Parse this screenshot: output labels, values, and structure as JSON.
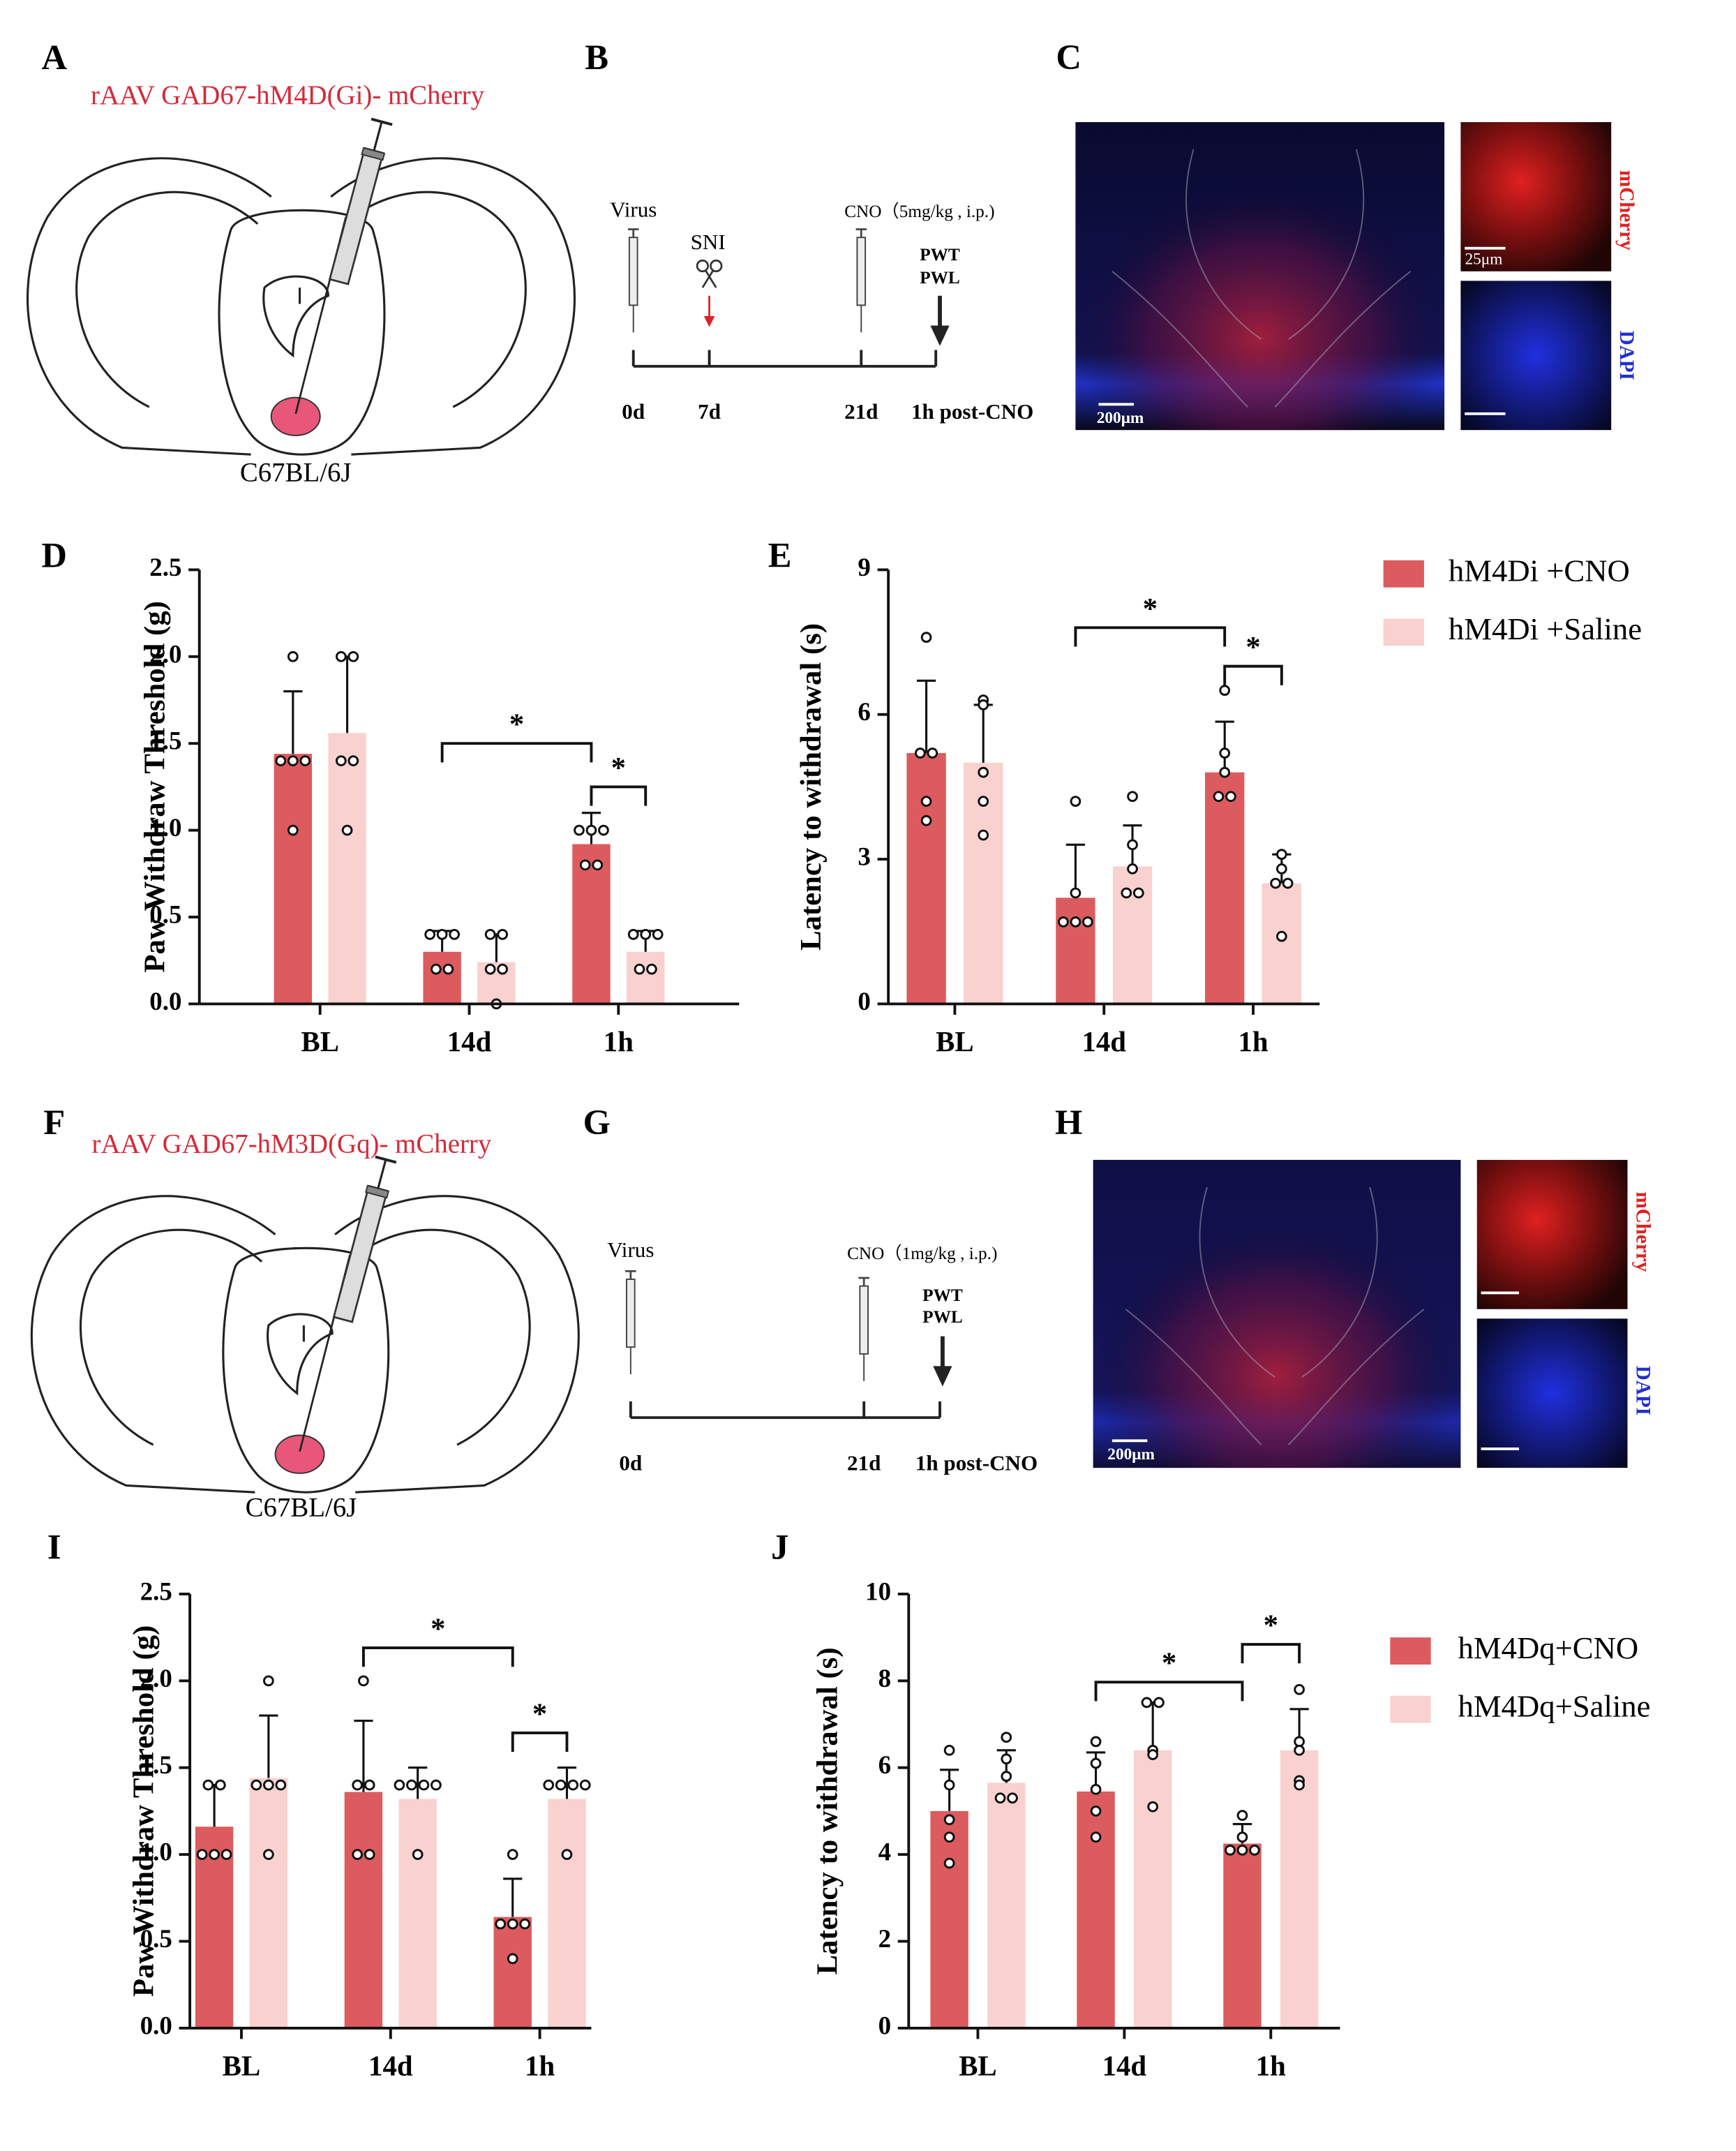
{
  "panels": {
    "A": {
      "letter": "A",
      "construct": "rAAV GAD67-hM4D(Gi)- mCherry",
      "strain": "C67BL/6J"
    },
    "B": {
      "letter": "B",
      "virus": "Virus",
      "sni": "SNI",
      "cno": "CNO（5mg/kg , i.p.)",
      "tests": [
        "PWT",
        "PWL"
      ],
      "timepoints": [
        "0d",
        "7d",
        "21d",
        "1h post-CNO"
      ]
    },
    "C": {
      "letter": "C",
      "scale_main": "200μm",
      "scale_inset": "25μm",
      "channels": [
        "mCherry",
        "DAPI"
      ]
    },
    "F": {
      "letter": "F",
      "construct": "rAAV GAD67-hM3D(Gq)- mCherry",
      "strain": "C67BL/6J"
    },
    "G": {
      "letter": "G",
      "virus": "Virus",
      "cno": "CNO（1mg/kg , i.p.)",
      "tests": [
        "PWT",
        "PWL"
      ],
      "timepoints": [
        "0d",
        "21d",
        "1h post-CNO"
      ]
    },
    "H": {
      "letter": "H",
      "scale_main": "200μm",
      "channels": [
        "mCherry",
        "DAPI"
      ]
    }
  },
  "chart_data": [
    {
      "panel": "D",
      "type": "bar",
      "ylabel": "Paw Withdraw Threshold (g)",
      "categories": [
        "BL",
        "14d",
        "1h"
      ],
      "ylim": [
        0,
        2.5
      ],
      "yticks": [
        {
          "value": 0,
          "label": "0.0"
        },
        0.5,
        {
          "value": 1,
          "label": "1.0"
        },
        1.5,
        {
          "value": 2,
          "label": "2.0"
        },
        2.5
      ],
      "series": [
        {
          "color": "#dc5b5e",
          "values": [
            1.44,
            0.3,
            0.92
          ],
          "errors": [
            0.36,
            0.12,
            0.18
          ],
          "points": [
            [
              2.0,
              1.4,
              1.4,
              1.4,
              1.0
            ],
            [
              0.4,
              0.4,
              0.4,
              0.2,
              0.2
            ],
            [
              1.0,
              1.0,
              1.0,
              0.8,
              0.8
            ]
          ]
        },
        {
          "color": "#f9d1cf",
          "values": [
            1.56,
            0.24,
            0.3
          ],
          "errors": [
            0.44,
            0.16,
            0.12
          ],
          "points": [
            [
              2.0,
              2.0,
              1.4,
              1.4,
              1.0
            ],
            [
              0.4,
              0.4,
              0.2,
              0.2,
              0.0
            ],
            [
              0.4,
              0.4,
              0.4,
              0.2,
              0.2
            ]
          ]
        }
      ],
      "brackets": [
        {
          "y": 1.5,
          "label": "*"
        },
        {
          "y": 1.25,
          "label": "*"
        }
      ]
    },
    {
      "panel": "E",
      "type": "bar",
      "ylabel": "Latency to withdrawal (s)",
      "categories": [
        "BL",
        "14d",
        "1h"
      ],
      "ylim": [
        0,
        9
      ],
      "yticks": [
        0,
        3,
        6,
        9
      ],
      "legend": "outside right",
      "series": [
        {
          "name": "hM4Di +CNO",
          "color": "#dc5b5e",
          "values": [
            5.2,
            2.2,
            4.8
          ],
          "errors": [
            1.5,
            1.1,
            1.05
          ],
          "points": [
            [
              7.6,
              5.2,
              5.2,
              4.2,
              3.8
            ],
            [
              4.2,
              2.3,
              1.7,
              1.7,
              1.7
            ],
            [
              6.5,
              5.2,
              4.8,
              4.3,
              4.3
            ]
          ]
        },
        {
          "name": "hM4Di +Saline",
          "color": "#f9d1cf",
          "values": [
            5.0,
            2.85,
            2.5
          ],
          "errors": [
            1.2,
            0.85,
            0.6
          ],
          "points": [
            [
              6.3,
              6.2,
              4.8,
              4.2,
              3.5
            ],
            [
              4.3,
              3.3,
              2.8,
              2.3,
              2.3
            ],
            [
              3.1,
              2.8,
              2.5,
              2.5,
              1.4
            ]
          ]
        }
      ],
      "brackets": [
        {
          "y": 7.8,
          "label": "*"
        },
        {
          "y": 7.0,
          "label": "*"
        }
      ]
    },
    {
      "panel": "I",
      "type": "bar",
      "ylabel": "Paw Withdraw Threshold (g)",
      "categories": [
        "BL",
        "14d",
        "1h"
      ],
      "ylim": [
        0,
        2.5
      ],
      "yticks": [
        {
          "value": 0,
          "label": "0.0"
        },
        0.5,
        {
          "value": 1,
          "label": "1.0"
        },
        1.5,
        {
          "value": 2,
          "label": "2.0"
        },
        2.5
      ],
      "series": [
        {
          "color": "#dc5b5e",
          "values": [
            1.16,
            1.36,
            0.64
          ],
          "errors": [
            0.24,
            0.41,
            0.22
          ],
          "points": [
            [
              1.4,
              1.4,
              1.0,
              1.0,
              1.0
            ],
            [
              2.0,
              1.4,
              1.4,
              1.0,
              1.0
            ],
            [
              1.0,
              0.6,
              0.6,
              0.6,
              0.4
            ]
          ]
        },
        {
          "color": "#f9d1cf",
          "values": [
            1.44,
            1.32,
            1.32
          ],
          "errors": [
            0.36,
            0.18,
            0.18
          ],
          "points": [
            [
              2.0,
              1.4,
              1.4,
              1.4,
              1.0
            ],
            [
              1.4,
              1.4,
              1.4,
              1.4,
              1.0
            ],
            [
              1.4,
              1.4,
              1.4,
              1.4,
              1.0
            ]
          ]
        }
      ],
      "brackets": [
        {
          "y": 2.19,
          "label": "*"
        },
        {
          "y": 1.7,
          "label": "*"
        }
      ]
    },
    {
      "panel": "J",
      "type": "bar",
      "ylabel": "Latency to withdrawal (s)",
      "categories": [
        "BL",
        "14d",
        "1h"
      ],
      "ylim": [
        0,
        10
      ],
      "yticks": [
        0,
        2,
        4,
        6,
        8,
        10
      ],
      "legend": "outside right",
      "series": [
        {
          "name": "hM4Dq+CNO",
          "color": "#dc5b5e",
          "values": [
            5.0,
            5.45,
            4.25
          ],
          "errors": [
            0.95,
            0.9,
            0.45
          ],
          "points": [
            [
              6.4,
              5.6,
              4.8,
              4.4,
              3.8
            ],
            [
              6.6,
              6.1,
              5.5,
              5.0,
              4.4
            ],
            [
              4.9,
              4.4,
              4.1,
              4.1,
              4.1
            ]
          ]
        },
        {
          "name": "hM4Dq+Saline",
          "color": "#f9d1cf",
          "values": [
            5.65,
            6.4,
            6.4
          ],
          "errors": [
            0.75,
            1.1,
            0.95
          ],
          "points": [
            [
              6.7,
              6.2,
              5.8,
              5.3,
              5.3
            ],
            [
              7.5,
              7.5,
              6.4,
              6.3,
              5.1
            ],
            [
              7.8,
              6.6,
              6.4,
              5.7,
              5.6
            ]
          ]
        }
      ],
      "brackets": [
        {
          "y": 7.97,
          "label": "*"
        },
        {
          "y": 8.84,
          "label": "*"
        }
      ]
    }
  ]
}
